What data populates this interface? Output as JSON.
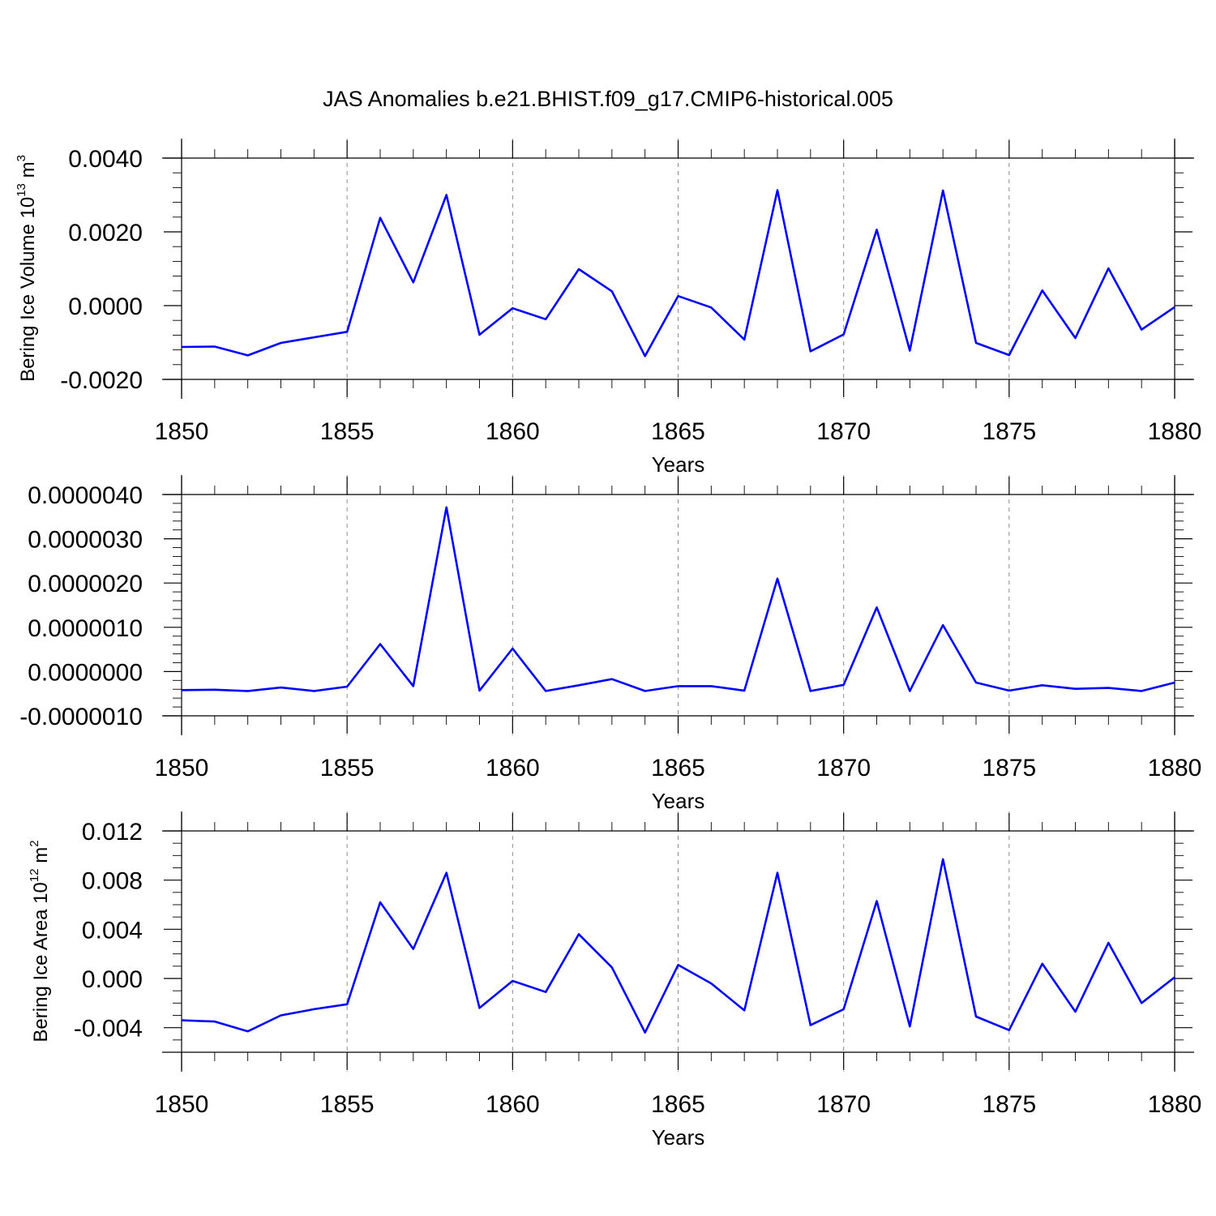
{
  "figure_title": "JAS Anomalies b.e21.BHIST.f09_g17.CMIP6-historical.005",
  "chart_data": [
    {
      "type": "line",
      "title": "",
      "xlabel": "Years",
      "ylabel_text": "Bering Ice Volume 10",
      "ylabel_exp": "13",
      "ylabel_unit": " m",
      "ylabel_unit_exp": "3",
      "x": [
        1850,
        1851,
        1852,
        1853,
        1854,
        1855,
        1856,
        1857,
        1858,
        1859,
        1860,
        1861,
        1862,
        1863,
        1864,
        1865,
        1866,
        1867,
        1868,
        1869,
        1870,
        1871,
        1872,
        1873,
        1874,
        1875,
        1876,
        1877,
        1878,
        1879,
        1880
      ],
      "xlim": [
        1850,
        1880
      ],
      "xticks": [
        1850,
        1855,
        1860,
        1865,
        1870,
        1875,
        1880
      ],
      "xtick_labels": [
        "1850",
        "1855",
        "1860",
        "1865",
        "1870",
        "1875",
        "1880"
      ],
      "ylim": [
        -0.002,
        0.004
      ],
      "yticks": [
        -0.002,
        0.0,
        0.002,
        0.004
      ],
      "ytick_labels": [
        "-0.0020",
        "0.0000",
        "0.0020",
        "0.0040"
      ],
      "series": [
        {
          "name": "Bering Ice Volume anomaly",
          "color": "#0000ff",
          "values": [
            -0.00112,
            -0.00111,
            -0.00135,
            -0.00101,
            -0.00086,
            -0.00071,
            0.00238,
            0.00063,
            0.003,
            -0.00079,
            -7e-05,
            -0.00037,
            0.00099,
            0.00039,
            -0.00137,
            0.00026,
            -5e-05,
            -0.00092,
            0.00313,
            -0.00124,
            -0.00078,
            0.00206,
            -0.00122,
            0.00312,
            -0.00101,
            -0.00134,
            0.00041,
            -0.00088,
            0.00101,
            -0.00065,
            -4e-05
          ]
        }
      ]
    },
    {
      "type": "line",
      "title": "",
      "xlabel": "Years",
      "ylabel_text": "",
      "ylabel_exp": "",
      "ylabel_unit": "",
      "ylabel_unit_exp": "",
      "x": [
        1850,
        1851,
        1852,
        1853,
        1854,
        1855,
        1856,
        1857,
        1858,
        1859,
        1860,
        1861,
        1862,
        1863,
        1864,
        1865,
        1866,
        1867,
        1868,
        1869,
        1870,
        1871,
        1872,
        1873,
        1874,
        1875,
        1876,
        1877,
        1878,
        1879,
        1880
      ],
      "xlim": [
        1850,
        1880
      ],
      "xticks": [
        1850,
        1855,
        1860,
        1865,
        1870,
        1875,
        1880
      ],
      "xtick_labels": [
        "1850",
        "1855",
        "1860",
        "1865",
        "1870",
        "1875",
        "1880"
      ],
      "ylim": [
        -1e-06,
        4e-06
      ],
      "yticks": [
        -1e-06,
        0.0,
        1e-06,
        2e-06,
        3e-06,
        4e-06
      ],
      "ytick_labels": [
        "-0.0000010",
        "0.0000000",
        "0.0000010",
        "0.0000020",
        "0.0000030",
        "0.0000040"
      ],
      "series": [
        {
          "name": "anomaly",
          "color": "#0000ff",
          "values": [
            -4.2e-07,
            -4.1e-07,
            -4.4e-07,
            -3.6e-07,
            -4.4e-07,
            -3.4e-07,
            6.2e-07,
            -3.3e-07,
            3.71e-06,
            -4.3e-07,
            5.2e-07,
            -4.4e-07,
            -3.1e-07,
            -1.7e-07,
            -4.4e-07,
            -3.3e-07,
            -3.3e-07,
            -4.3e-07,
            2.1e-06,
            -4.4e-07,
            -3e-07,
            1.45e-06,
            -4.4e-07,
            1.05e-06,
            -2.5e-07,
            -4.3e-07,
            -3.1e-07,
            -3.9e-07,
            -3.7e-07,
            -4.4e-07,
            -2.5e-07
          ]
        }
      ]
    },
    {
      "type": "line",
      "title": "",
      "xlabel": "Years",
      "ylabel_text": "Bering Ice Area 10",
      "ylabel_exp": "12",
      "ylabel_unit": " m",
      "ylabel_unit_exp": "2",
      "x": [
        1850,
        1851,
        1852,
        1853,
        1854,
        1855,
        1856,
        1857,
        1858,
        1859,
        1860,
        1861,
        1862,
        1863,
        1864,
        1865,
        1866,
        1867,
        1868,
        1869,
        1870,
        1871,
        1872,
        1873,
        1874,
        1875,
        1876,
        1877,
        1878,
        1879,
        1880
      ],
      "xlim": [
        1850,
        1880
      ],
      "xticks": [
        1850,
        1855,
        1860,
        1865,
        1870,
        1875,
        1880
      ],
      "xtick_labels": [
        "1850",
        "1855",
        "1860",
        "1865",
        "1870",
        "1875",
        "1880"
      ],
      "ylim": [
        -0.006,
        0.012
      ],
      "yticks": [
        -0.004,
        0.0,
        0.004,
        0.008,
        0.012
      ],
      "ytick_labels": [
        "-0.004",
        "0.000",
        "0.004",
        "0.008",
        "0.012"
      ],
      "series": [
        {
          "name": "Bering Ice Area anomaly",
          "color": "#0000ff",
          "values": [
            -0.0034,
            -0.0035,
            -0.0043,
            -0.003,
            -0.0025,
            -0.0021,
            0.0062,
            0.0024,
            0.0086,
            -0.0024,
            -0.0002,
            -0.0011,
            0.0036,
            0.0009,
            -0.0044,
            0.0011,
            -0.0004,
            -0.0026,
            0.0086,
            -0.0038,
            -0.0025,
            0.0063,
            -0.0039,
            0.0097,
            -0.0031,
            -0.0042,
            0.0012,
            -0.0027,
            0.0029,
            -0.002,
            0.0001
          ]
        }
      ]
    }
  ]
}
